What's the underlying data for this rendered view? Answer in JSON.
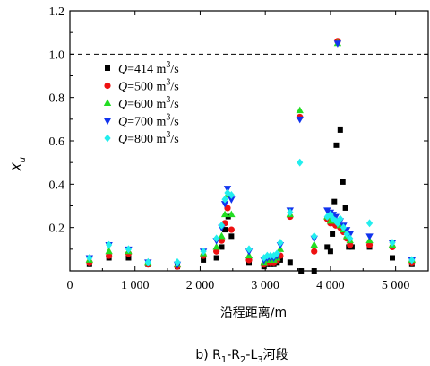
{
  "chart_data": {
    "type": "scatter",
    "ylabel": "X",
    "ylabel_sub": "u",
    "xlabel": "沿程距离/m",
    "xlim": [
      0,
      5500
    ],
    "ylim": [
      0,
      1.2
    ],
    "x_ticks": [
      0,
      1000,
      2000,
      3000,
      4000,
      5000
    ],
    "x_tick_labels": [
      "0",
      "1 000",
      "2 000",
      "3 000",
      "4 000",
      "5 000"
    ],
    "y_ticks": [
      0.2,
      0.4,
      0.6,
      0.8,
      1.0,
      1.2
    ],
    "y_tick_labels": [
      "0.2",
      "0.4",
      "0.6",
      "0.8",
      "1.0",
      "1.2"
    ],
    "reference_line": 1.0,
    "legend_placement": "upper-left",
    "caption": {
      "prefix": "b) R",
      "sub1": "1",
      "mid1": "-R",
      "sub2": "2",
      "mid2": "-L",
      "sub3": "3",
      "suffix": "河段"
    },
    "series": [
      {
        "name_italic": "Q",
        "name_rest": "=414 m",
        "name_sup": "3",
        "name_tail": "/s",
        "marker": "square",
        "color": "#000000",
        "points": [
          [
            300,
            0.03
          ],
          [
            600,
            0.06
          ],
          [
            900,
            0.06
          ],
          [
            1200,
            0.03
          ],
          [
            1650,
            0.02
          ],
          [
            2050,
            0.05
          ],
          [
            2250,
            0.06
          ],
          [
            2330,
            0.11
          ],
          [
            2380,
            0.19
          ],
          [
            2430,
            0.25
          ],
          [
            2480,
            0.16
          ],
          [
            2750,
            0.04
          ],
          [
            2980,
            0.02
          ],
          [
            3030,
            0.03
          ],
          [
            3080,
            0.03
          ],
          [
            3130,
            0.03
          ],
          [
            3180,
            0.04
          ],
          [
            3230,
            0.05
          ],
          [
            3380,
            0.04
          ],
          [
            3550,
            0.0
          ],
          [
            3750,
            0.0
          ],
          [
            3950,
            0.11
          ],
          [
            4000,
            0.09
          ],
          [
            4030,
            0.17
          ],
          [
            4060,
            0.32
          ],
          [
            4090,
            0.58
          ],
          [
            4150,
            0.65
          ],
          [
            4190,
            0.41
          ],
          [
            4230,
            0.29
          ],
          [
            4280,
            0.11
          ],
          [
            4330,
            0.11
          ],
          [
            4600,
            0.11
          ],
          [
            4950,
            0.06
          ],
          [
            5250,
            0.03
          ]
        ]
      },
      {
        "name_italic": "Q",
        "name_rest": "=500 m",
        "name_sup": "3",
        "name_tail": "/s",
        "marker": "circle",
        "color": "#ee1111",
        "points": [
          [
            300,
            0.04
          ],
          [
            600,
            0.07
          ],
          [
            900,
            0.08
          ],
          [
            1200,
            0.03
          ],
          [
            1650,
            0.02
          ],
          [
            2050,
            0.07
          ],
          [
            2250,
            0.09
          ],
          [
            2330,
            0.14
          ],
          [
            2380,
            0.22
          ],
          [
            2420,
            0.29
          ],
          [
            2480,
            0.19
          ],
          [
            2750,
            0.05
          ],
          [
            2980,
            0.03
          ],
          [
            3030,
            0.04
          ],
          [
            3080,
            0.04
          ],
          [
            3130,
            0.04
          ],
          [
            3180,
            0.05
          ],
          [
            3230,
            0.07
          ],
          [
            3380,
            0.25
          ],
          [
            3530,
            0.71
          ],
          [
            3750,
            0.09
          ],
          [
            3950,
            0.24
          ],
          [
            4000,
            0.22
          ],
          [
            4040,
            0.22
          ],
          [
            4080,
            0.21
          ],
          [
            4110,
            1.06
          ],
          [
            4150,
            0.2
          ],
          [
            4200,
            0.18
          ],
          [
            4250,
            0.15
          ],
          [
            4300,
            0.12
          ],
          [
            4600,
            0.12
          ],
          [
            4950,
            0.11
          ],
          [
            5250,
            0.04
          ]
        ]
      },
      {
        "name_italic": "Q",
        "name_rest": "=600 m",
        "name_sup": "3",
        "name_tail": "/s",
        "marker": "triangle-up",
        "color": "#22dd22",
        "points": [
          [
            300,
            0.05
          ],
          [
            600,
            0.09
          ],
          [
            900,
            0.09
          ],
          [
            1200,
            0.04
          ],
          [
            1650,
            0.03
          ],
          [
            2050,
            0.08
          ],
          [
            2250,
            0.11
          ],
          [
            2330,
            0.16
          ],
          [
            2380,
            0.26
          ],
          [
            2420,
            0.35
          ],
          [
            2480,
            0.26
          ],
          [
            2750,
            0.07
          ],
          [
            2980,
            0.04
          ],
          [
            3030,
            0.05
          ],
          [
            3080,
            0.05
          ],
          [
            3130,
            0.05
          ],
          [
            3180,
            0.06
          ],
          [
            3230,
            0.1
          ],
          [
            3380,
            0.26
          ],
          [
            3530,
            0.74
          ],
          [
            3750,
            0.12
          ],
          [
            3950,
            0.25
          ],
          [
            4000,
            0.23
          ],
          [
            4040,
            0.24
          ],
          [
            4080,
            0.23
          ],
          [
            4110,
            1.05
          ],
          [
            4150,
            0.21
          ],
          [
            4200,
            0.19
          ],
          [
            4250,
            0.16
          ],
          [
            4300,
            0.14
          ],
          [
            4600,
            0.14
          ],
          [
            4950,
            0.12
          ],
          [
            5250,
            0.05
          ]
        ]
      },
      {
        "name_italic": "Q",
        "name_rest": "=700 m",
        "name_sup": "3",
        "name_tail": "/s",
        "marker": "triangle-down",
        "color": "#1133ee",
        "points": [
          [
            300,
            0.06
          ],
          [
            600,
            0.12
          ],
          [
            900,
            0.1
          ],
          [
            1200,
            0.04
          ],
          [
            1650,
            0.03
          ],
          [
            2050,
            0.09
          ],
          [
            2250,
            0.14
          ],
          [
            2330,
            0.2
          ],
          [
            2380,
            0.31
          ],
          [
            2420,
            0.38
          ],
          [
            2480,
            0.33
          ],
          [
            2750,
            0.09
          ],
          [
            2980,
            0.05
          ],
          [
            3030,
            0.06
          ],
          [
            3080,
            0.06
          ],
          [
            3130,
            0.06
          ],
          [
            3180,
            0.07
          ],
          [
            3230,
            0.12
          ],
          [
            3380,
            0.28
          ],
          [
            3530,
            0.7
          ],
          [
            3750,
            0.15
          ],
          [
            3950,
            0.28
          ],
          [
            4000,
            0.27
          ],
          [
            4040,
            0.26
          ],
          [
            4080,
            0.25
          ],
          [
            4110,
            1.05
          ],
          [
            4150,
            0.23
          ],
          [
            4200,
            0.21
          ],
          [
            4250,
            0.19
          ],
          [
            4300,
            0.17
          ],
          [
            4600,
            0.16
          ],
          [
            4950,
            0.13
          ],
          [
            5250,
            0.05
          ]
        ]
      },
      {
        "name_italic": "Q",
        "name_rest": "=800 m",
        "name_sup": "3",
        "name_tail": "/s",
        "marker": "diamond",
        "color": "#22eeee",
        "points": [
          [
            300,
            0.06
          ],
          [
            600,
            0.12
          ],
          [
            900,
            0.1
          ],
          [
            1200,
            0.04
          ],
          [
            1650,
            0.04
          ],
          [
            2050,
            0.09
          ],
          [
            2250,
            0.15
          ],
          [
            2330,
            0.21
          ],
          [
            2380,
            0.33
          ],
          [
            2420,
            0.36
          ],
          [
            2480,
            0.35
          ],
          [
            2750,
            0.1
          ],
          [
            2980,
            0.06
          ],
          [
            3030,
            0.07
          ],
          [
            3080,
            0.07
          ],
          [
            3130,
            0.07
          ],
          [
            3180,
            0.08
          ],
          [
            3230,
            0.13
          ],
          [
            3380,
            0.27
          ],
          [
            3530,
            0.5
          ],
          [
            3750,
            0.16
          ],
          [
            3950,
            0.25
          ],
          [
            4000,
            0.26
          ],
          [
            4040,
            0.24
          ],
          [
            4080,
            0.23
          ],
          [
            4110,
            0.22
          ],
          [
            4150,
            0.24
          ],
          [
            4200,
            0.2
          ],
          [
            4250,
            0.17
          ],
          [
            4300,
            0.15
          ],
          [
            4600,
            0.22
          ],
          [
            4950,
            0.13
          ],
          [
            5250,
            0.05
          ]
        ]
      }
    ]
  }
}
